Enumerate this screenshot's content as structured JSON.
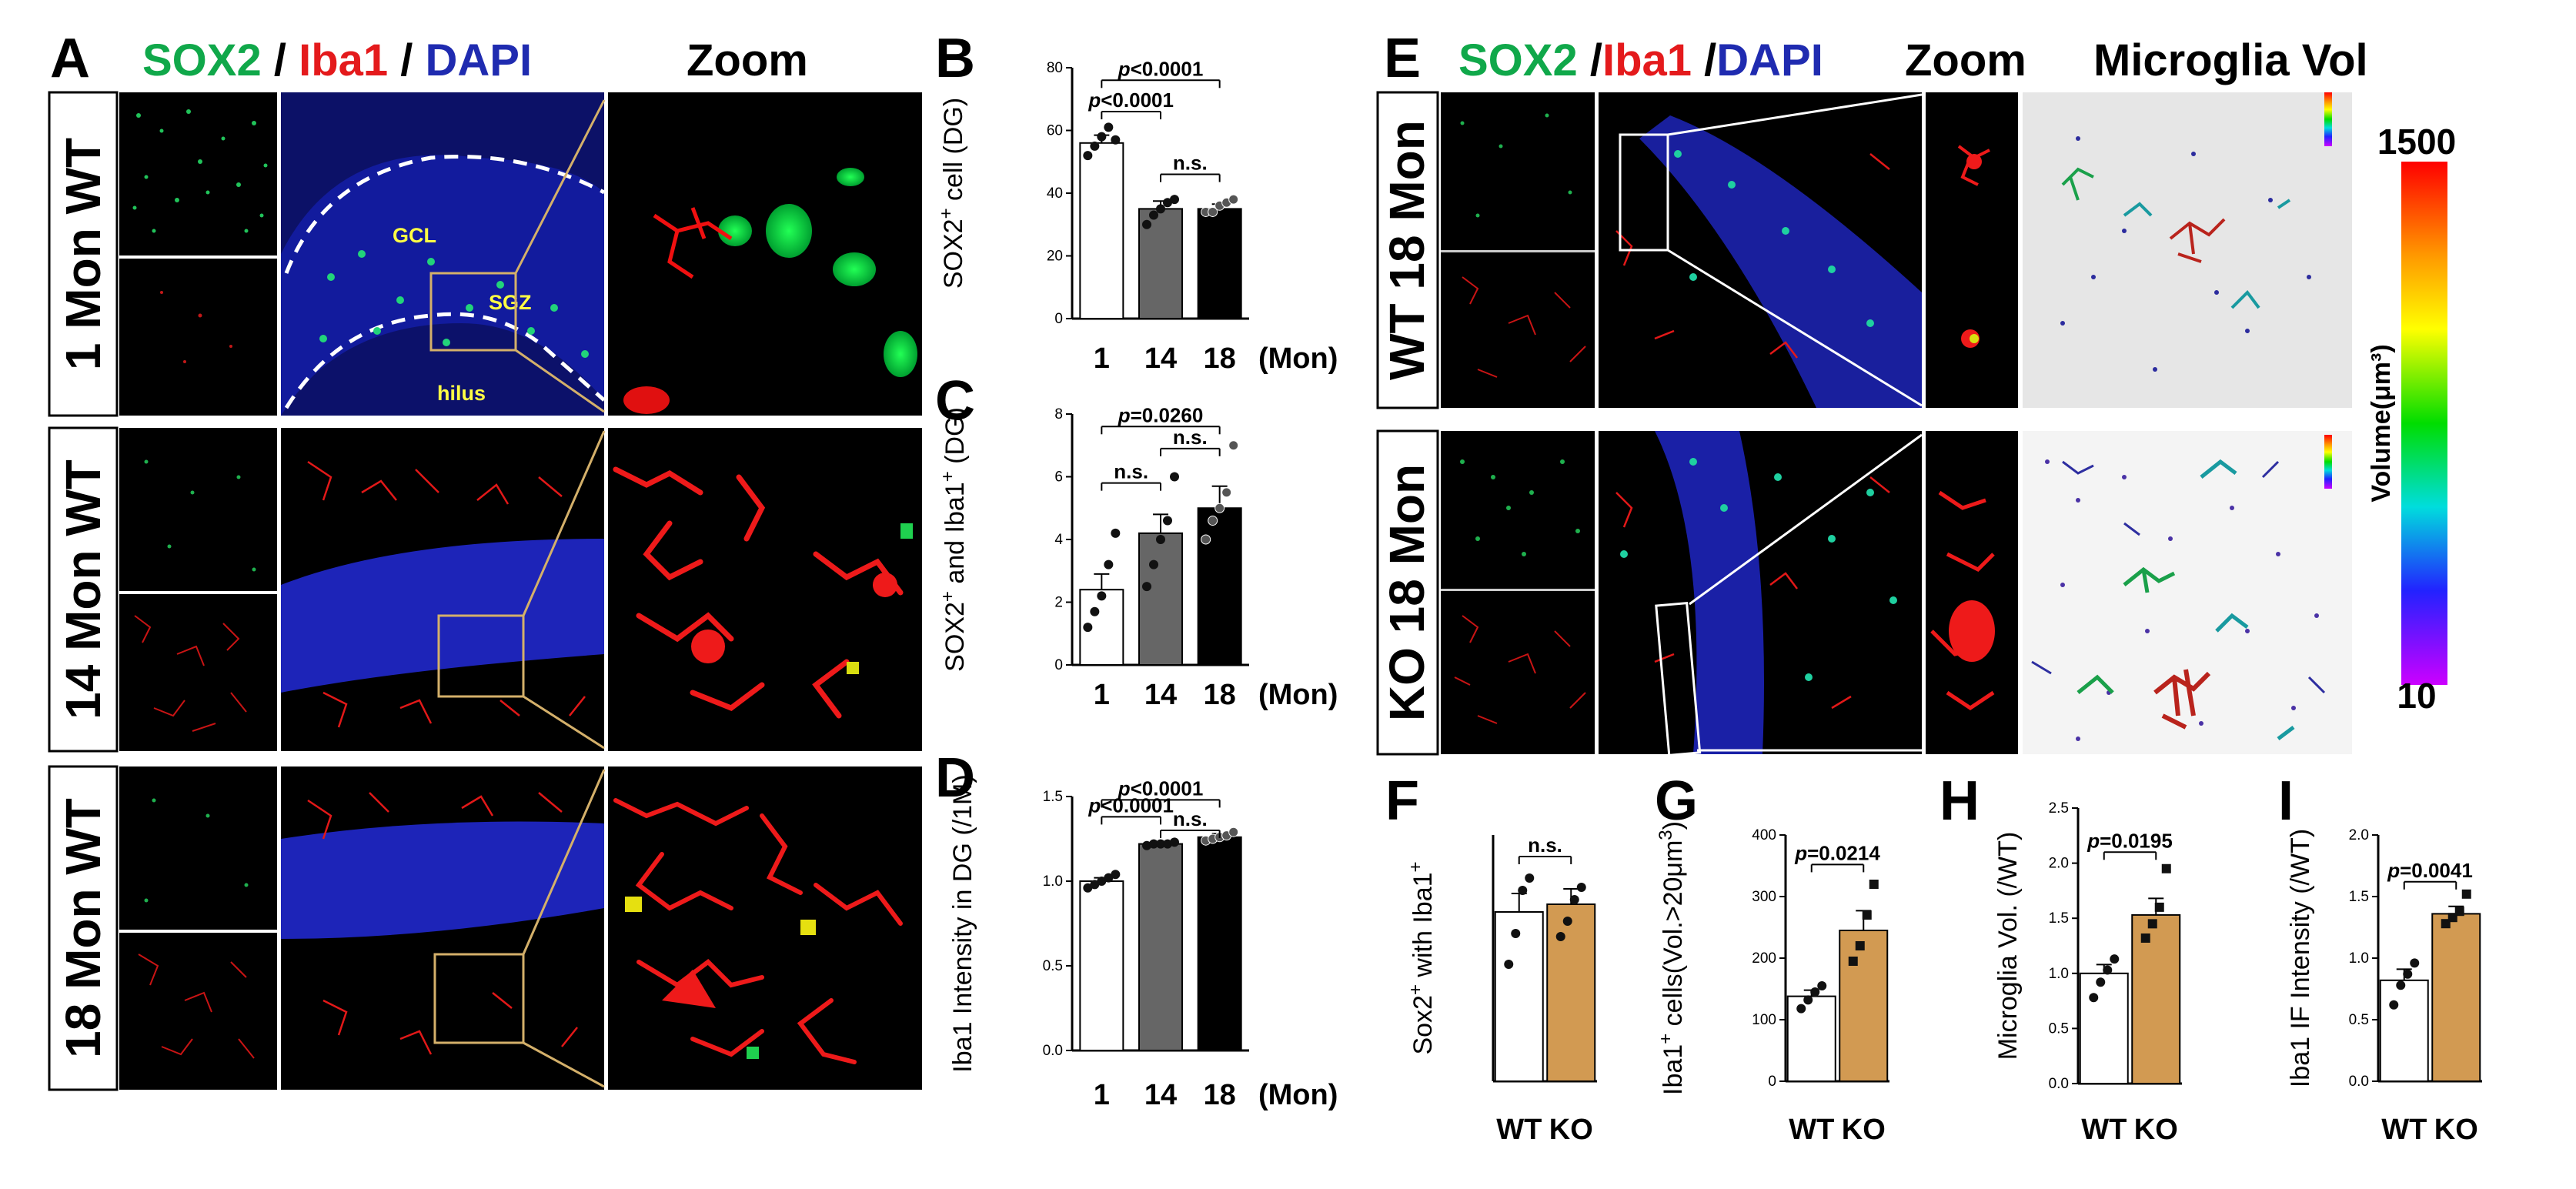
{
  "panel_letters": [
    "A",
    "B",
    "C",
    "D",
    "E",
    "F",
    "G",
    "H",
    "I"
  ],
  "panel_a": {
    "channels": [
      {
        "text": "SOX2",
        "color": "#10a84a"
      },
      {
        "text": " / ",
        "color": "#000000"
      },
      {
        "text": "Iba1",
        "color": "#e41a1c"
      },
      {
        "text": " / ",
        "color": "#000000"
      },
      {
        "text": "DAPI",
        "color": "#1f2bb0"
      }
    ],
    "zoom": "Zoom",
    "rows": [
      "1 Mon WT",
      "14 Mon WT",
      "18 Mon WT"
    ],
    "regions": [
      "GCL",
      "SGZ",
      "hilus"
    ]
  },
  "panel_e": {
    "channels": [
      {
        "text": "SOX2",
        "color": "#10a84a"
      },
      {
        "text": " /",
        "color": "#000000"
      },
      {
        "text": "Iba1",
        "color": "#e41a1c"
      },
      {
        "text": " /",
        "color": "#000000"
      },
      {
        "text": "DAPI",
        "color": "#1f2bb0"
      }
    ],
    "zoom": "Zoom",
    "vol_title": "Microglia Vol",
    "rows": [
      "WT 18 Mon",
      "KO 18 Mon"
    ],
    "colorbar": {
      "max": "1500",
      "min": "10",
      "label": "Volume(μm³)"
    }
  },
  "chart_data": [
    {
      "id": "B",
      "type": "bar",
      "categories": [
        "1",
        "14",
        "18"
      ],
      "cat_suffix": "(Mon)",
      "values": [
        56,
        35,
        35
      ],
      "errors": [
        2.5,
        2.5,
        1.5
      ],
      "points": [
        [
          52,
          55,
          58,
          61,
          57
        ],
        [
          30,
          33,
          35,
          37,
          38
        ],
        [
          34,
          34,
          36,
          37,
          38
        ]
      ],
      "fills": [
        "#ffffff",
        "#666666",
        "#000000"
      ],
      "ylabel_parts": [
        "SOX2",
        "+",
        " cell (DG)"
      ],
      "ylim": [
        0,
        80
      ],
      "ticks": [
        0,
        20,
        40,
        60,
        80
      ],
      "tick_labels": [
        "0",
        "20",
        "40",
        "60",
        "80"
      ],
      "comparisons": [
        {
          "a": 0,
          "b": 2,
          "label": "p<0.0001",
          "y": 76
        },
        {
          "a": 0,
          "b": 1,
          "label": "p<0.0001",
          "y": 66
        },
        {
          "a": 1,
          "b": 2,
          "label": "n.s.",
          "y": 46
        }
      ]
    },
    {
      "id": "C",
      "type": "bar",
      "categories": [
        "1",
        "14",
        "18"
      ],
      "cat_suffix": "(Mon)",
      "values": [
        2.4,
        4.2,
        5.0
      ],
      "errors": [
        0.5,
        0.6,
        0.7
      ],
      "points": [
        [
          1.2,
          1.7,
          2.2,
          3.2,
          4.2
        ],
        [
          2.5,
          3.2,
          4.0,
          4.6,
          6.0
        ],
        [
          4.0,
          4.6,
          5.0,
          5.5,
          7.0
        ]
      ],
      "fills": [
        "#ffffff",
        "#666666",
        "#000000"
      ],
      "ylabel_parts": [
        "SOX2",
        "+",
        " and Iba1",
        "+",
        " (DG)"
      ],
      "ylim": [
        0,
        8
      ],
      "ticks": [
        0,
        2,
        4,
        6,
        8
      ],
      "tick_labels": [
        "0",
        "2",
        "4",
        "6",
        "8"
      ],
      "comparisons": [
        {
          "a": 0,
          "b": 2,
          "label": "p=0.0260",
          "y": 7.6
        },
        {
          "a": 1,
          "b": 2,
          "label": "n.s.",
          "y": 6.9
        },
        {
          "a": 0,
          "b": 1,
          "label": "n.s.",
          "y": 5.8
        }
      ]
    },
    {
      "id": "D",
      "type": "bar",
      "categories": [
        "1",
        "14",
        "18"
      ],
      "cat_suffix": "(Mon)",
      "values": [
        1.0,
        1.22,
        1.26
      ],
      "errors": [
        0.02,
        0.01,
        0.02
      ],
      "points": [
        [
          0.96,
          0.98,
          1.0,
          1.02,
          1.04
        ],
        [
          1.21,
          1.22,
          1.22,
          1.22,
          1.23
        ],
        [
          1.24,
          1.25,
          1.26,
          1.27,
          1.29
        ]
      ],
      "fills": [
        "#ffffff",
        "#666666",
        "#000000"
      ],
      "ylabel_parts": [
        "Iba1 Intensity in DG  (/1M)"
      ],
      "ylim": [
        0,
        1.5
      ],
      "ticks": [
        0,
        0.5,
        1.0,
        1.5
      ],
      "tick_labels": [
        "0.0",
        "0.5",
        "1.0",
        "1.5"
      ],
      "comparisons": [
        {
          "a": 0,
          "b": 2,
          "label": "p<0.0001",
          "y": 1.48
        },
        {
          "a": 0,
          "b": 1,
          "label": "p<0.0001",
          "y": 1.38
        },
        {
          "a": 1,
          "b": 2,
          "label": "n.s.",
          "y": 1.3
        }
      ]
    },
    {
      "id": "F",
      "type": "bar",
      "categories": [
        "WT",
        "KO"
      ],
      "values": [
        5.5,
        5.75
      ],
      "errors": [
        0.6,
        0.5
      ],
      "points": [
        [
          3.8,
          4.8,
          6.2,
          6.6
        ],
        [
          4.7,
          5.2,
          5.9,
          6.3
        ]
      ],
      "fills": [
        "#ffffff",
        "#d29a52"
      ],
      "ylabel_parts": [
        "Sox2",
        "+",
        " with Iba1",
        "+"
      ],
      "ylim": [
        0,
        8
      ],
      "ticks": [],
      "tick_labels": [],
      "comparisons": [
        {
          "a": 0,
          "b": 1,
          "label": "n.s.",
          "y": 7.3
        }
      ]
    },
    {
      "id": "G",
      "type": "bar",
      "categories": [
        "WT",
        "KO"
      ],
      "values": [
        138,
        245
      ],
      "errors": [
        10,
        32
      ],
      "points": [
        [
          118,
          132,
          145,
          155
        ],
        [
          195,
          220,
          270,
          320
        ]
      ],
      "fills": [
        "#ffffff",
        "#d29a52"
      ],
      "ylabel_parts": [
        "Iba1",
        "+",
        " cells",
        "(Vol.>20μm",
        "3",
        ")"
      ],
      "ylim": [
        0,
        400
      ],
      "ticks": [
        0,
        100,
        200,
        300,
        400
      ],
      "tick_labels": [
        "0",
        "100",
        "200",
        "300",
        "400"
      ],
      "comparisons": [
        {
          "a": 0,
          "b": 1,
          "label": "p=0.0214",
          "y": 352
        }
      ]
    },
    {
      "id": "H",
      "type": "bar",
      "categories": [
        "WT",
        "KO"
      ],
      "values": [
        1.0,
        1.53
      ],
      "errors": [
        0.08,
        0.15
      ],
      "points": [
        [
          0.78,
          0.92,
          1.03,
          1.13
        ],
        [
          1.32,
          1.45,
          1.6,
          1.95
        ]
      ],
      "fills": [
        "#ffffff",
        "#d29a52"
      ],
      "ylabel_parts": [
        "Microglia Vol. (/WT)"
      ],
      "ylim": [
        0,
        2.5
      ],
      "ticks": [
        0,
        0.5,
        1.0,
        1.5,
        2.0,
        2.5
      ],
      "tick_labels": [
        "0.0",
        "0.5",
        "1.0",
        "1.5",
        "2.0",
        "2.5"
      ],
      "comparisons": [
        {
          "a": 0,
          "b": 1,
          "label": "p=0.0195",
          "y": 2.1
        }
      ]
    },
    {
      "id": "I",
      "type": "bar",
      "categories": [
        "WT",
        "KO"
      ],
      "values": [
        0.82,
        1.36
      ],
      "errors": [
        0.09,
        0.06
      ],
      "points": [
        [
          0.62,
          0.78,
          0.87,
          0.96
        ],
        [
          1.28,
          1.33,
          1.38,
          1.52
        ]
      ],
      "fills": [
        "#ffffff",
        "#d29a52"
      ],
      "ylabel_parts": [
        "Iba1 IF Intensity (/WT)"
      ],
      "ylim": [
        0,
        2.0
      ],
      "ticks": [
        0,
        0.5,
        1.0,
        1.5,
        2.0
      ],
      "tick_labels": [
        "0.0",
        "0.5",
        "1.0",
        "1.5",
        "2.0"
      ],
      "comparisons": [
        {
          "a": 0,
          "b": 1,
          "label": "p=0.0041",
          "y": 1.62
        }
      ]
    }
  ]
}
